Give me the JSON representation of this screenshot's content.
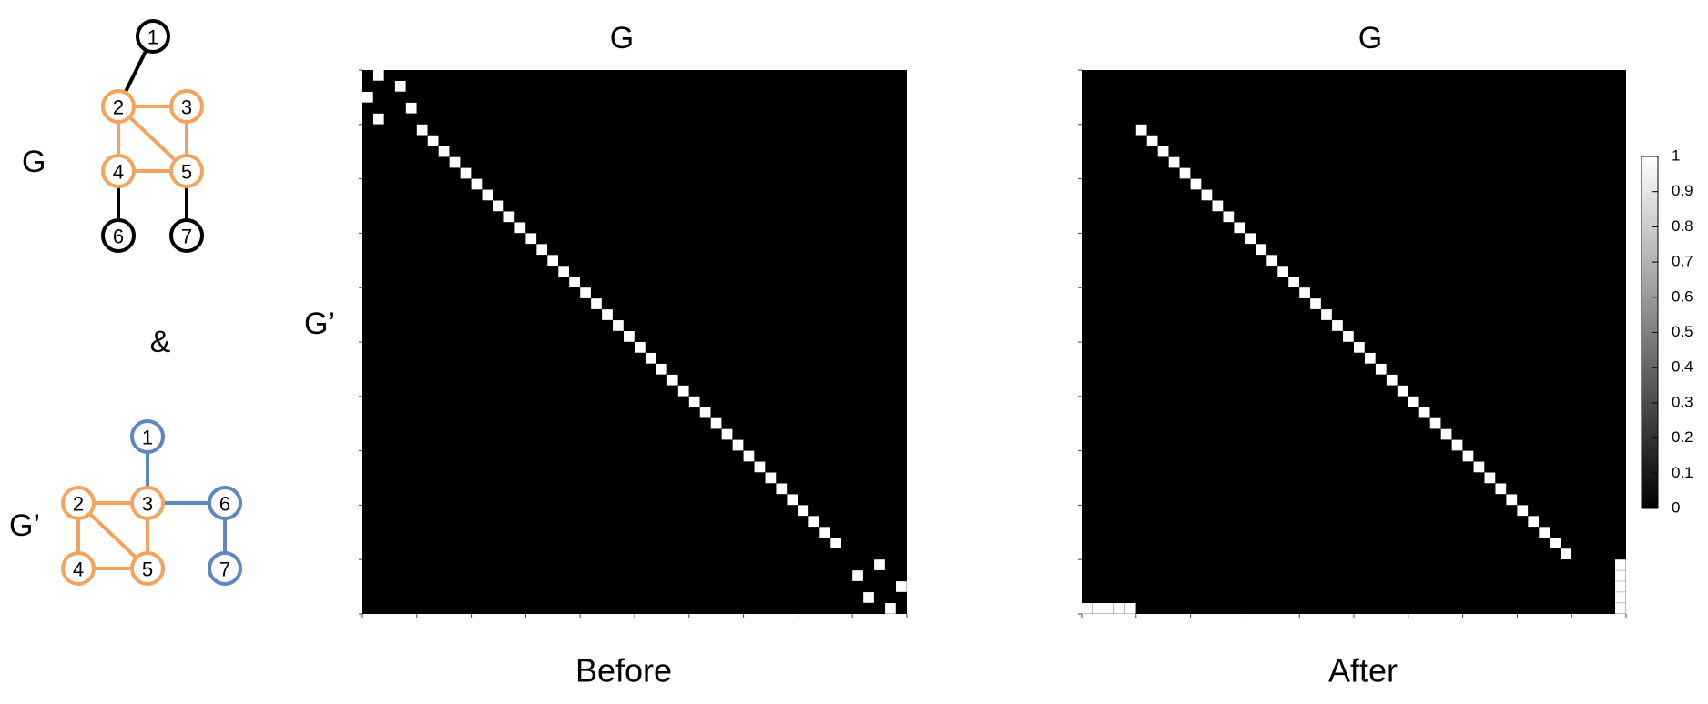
{
  "colors": {
    "graph_g_edge": "#000000",
    "common_subgraph": "#f5a25d",
    "graph_gprime_extra": "#5b87c5",
    "matrix_background": "#000000",
    "match_cell": "#ffffff"
  },
  "graphs": {
    "g": {
      "label": "G",
      "nodes": [
        "1",
        "2",
        "3",
        "4",
        "5",
        "6",
        "7"
      ]
    },
    "ampersand": "&",
    "g_prime": {
      "label": "G’",
      "nodes": [
        "1",
        "2",
        "3",
        "4",
        "5",
        "6",
        "7"
      ]
    }
  },
  "matrices": {
    "before": {
      "top_label": "G",
      "side_label": "G’",
      "caption": "Before"
    },
    "after": {
      "top_label": "G",
      "caption": "After"
    }
  },
  "colorbar": {
    "ticks": [
      "1",
      "0.9",
      "0.8",
      "0.7",
      "0.6",
      "0.5",
      "0.4",
      "0.3",
      "0.2",
      "0.1",
      "0"
    ]
  },
  "chart_data": [
    {
      "type": "heatmap",
      "title": "Before",
      "xlabel": "G",
      "ylabel": "G’",
      "value_range": [
        0,
        1
      ],
      "size": 50,
      "cells_value_1": [
        [
          0,
          1
        ],
        [
          2,
          0
        ],
        [
          4,
          1
        ],
        [
          1,
          3
        ],
        [
          3,
          4
        ],
        [
          5,
          5
        ],
        [
          6,
          6
        ],
        [
          7,
          7
        ],
        [
          8,
          8
        ],
        [
          9,
          9
        ],
        [
          10,
          10
        ],
        [
          11,
          11
        ],
        [
          12,
          12
        ],
        [
          13,
          13
        ],
        [
          14,
          14
        ],
        [
          15,
          15
        ],
        [
          16,
          16
        ],
        [
          17,
          17
        ],
        [
          18,
          18
        ],
        [
          19,
          19
        ],
        [
          20,
          20
        ],
        [
          21,
          21
        ],
        [
          22,
          22
        ],
        [
          23,
          23
        ],
        [
          24,
          24
        ],
        [
          25,
          25
        ],
        [
          26,
          26
        ],
        [
          27,
          27
        ],
        [
          28,
          28
        ],
        [
          29,
          29
        ],
        [
          30,
          30
        ],
        [
          31,
          31
        ],
        [
          32,
          32
        ],
        [
          33,
          33
        ],
        [
          34,
          34
        ],
        [
          35,
          35
        ],
        [
          36,
          36
        ],
        [
          37,
          37
        ],
        [
          38,
          38
        ],
        [
          39,
          39
        ],
        [
          40,
          40
        ],
        [
          41,
          41
        ],
        [
          42,
          42
        ],
        [
          43,
          43
        ],
        [
          46,
          45
        ],
        [
          48,
          46
        ],
        [
          45,
          47
        ],
        [
          49,
          48
        ],
        [
          47,
          49
        ]
      ]
    },
    {
      "type": "heatmap",
      "title": "After",
      "xlabel": "G",
      "ylabel": "",
      "value_range": [
        0,
        1
      ],
      "size": 50,
      "cells_value_1": [
        [
          5,
          5
        ],
        [
          6,
          6
        ],
        [
          7,
          7
        ],
        [
          8,
          8
        ],
        [
          9,
          9
        ],
        [
          10,
          10
        ],
        [
          11,
          11
        ],
        [
          12,
          12
        ],
        [
          13,
          13
        ],
        [
          14,
          14
        ],
        [
          15,
          15
        ],
        [
          16,
          16
        ],
        [
          17,
          17
        ],
        [
          18,
          18
        ],
        [
          19,
          19
        ],
        [
          20,
          20
        ],
        [
          21,
          21
        ],
        [
          22,
          22
        ],
        [
          23,
          23
        ],
        [
          24,
          24
        ],
        [
          25,
          25
        ],
        [
          26,
          26
        ],
        [
          27,
          27
        ],
        [
          28,
          28
        ],
        [
          29,
          29
        ],
        [
          30,
          30
        ],
        [
          31,
          31
        ],
        [
          32,
          32
        ],
        [
          33,
          33
        ],
        [
          34,
          34
        ],
        [
          35,
          35
        ],
        [
          36,
          36
        ],
        [
          37,
          37
        ],
        [
          38,
          38
        ],
        [
          39,
          39
        ],
        [
          40,
          40
        ],
        [
          41,
          41
        ],
        [
          42,
          42
        ],
        [
          43,
          43
        ],
        [
          44,
          44
        ],
        [
          49,
          0
        ],
        [
          49,
          1
        ],
        [
          49,
          2
        ],
        [
          49,
          3
        ],
        [
          49,
          4
        ],
        [
          45,
          49
        ],
        [
          46,
          49
        ],
        [
          47,
          49
        ],
        [
          48,
          49
        ],
        [
          49,
          49
        ]
      ]
    }
  ]
}
